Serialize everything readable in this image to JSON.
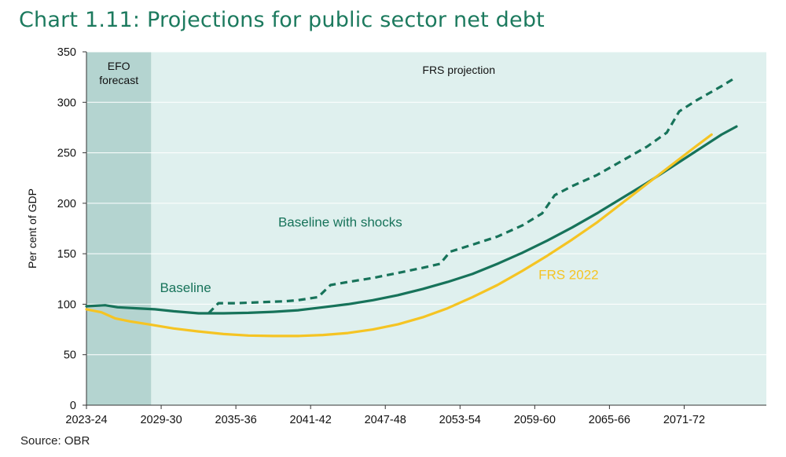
{
  "header": {
    "title": "Chart 1.11: Projections for public sector net debt"
  },
  "footer": {
    "source": "Source: OBR"
  },
  "colors": {
    "baseline": "#17735a",
    "shocks": "#17735a",
    "frs2022": "#f5c423",
    "forecast_bg": "#b4d4d0",
    "projection_bg": "#dff0ee"
  },
  "chart_data": {
    "type": "line",
    "ylabel": "Per cent of GDP",
    "ylim": [
      0,
      350
    ],
    "yticks": [
      0,
      50,
      100,
      150,
      200,
      250,
      300,
      350
    ],
    "xlim": [
      2023,
      2077.6
    ],
    "xticks": [
      {
        "label": "2023-24",
        "year": 2023
      },
      {
        "label": "2029-30",
        "year": 2029
      },
      {
        "label": "2035-36",
        "year": 2035
      },
      {
        "label": "2041-42",
        "year": 2041
      },
      {
        "label": "2047-48",
        "year": 2047
      },
      {
        "label": "2053-54",
        "year": 2053
      },
      {
        "label": "2059-60",
        "year": 2059
      },
      {
        "label": "2065-66",
        "year": 2065
      },
      {
        "label": "2071-72",
        "year": 2071
      }
    ],
    "regions": [
      {
        "name": "EFO forecast",
        "label_lines": [
          "EFO",
          "forecast"
        ],
        "from": 2023,
        "to": 2028.2
      },
      {
        "name": "FRS projection",
        "label_lines": [
          "FRS projection"
        ],
        "from": 2028.2,
        "to": 2077.6
      }
    ],
    "series": [
      {
        "key": "shocks",
        "name": "Baseline with shocks",
        "style": "dashed",
        "x": [
          2032.8,
          2033.6,
          2035,
          2037,
          2039,
          2040,
          2041.6,
          2042.6,
          2044,
          2046,
          2048,
          2050,
          2051.4,
          2052.2,
          2054,
          2056,
          2058,
          2059.6,
          2060.6,
          2062,
          2064,
          2066,
          2068,
          2069.6,
          2070.6,
          2072,
          2074,
          2075.2
        ],
        "y": [
          91,
          101,
          101,
          102,
          103,
          104,
          107,
          119,
          122,
          126,
          131,
          136,
          140,
          152,
          159,
          167,
          178,
          190,
          208,
          217,
          228,
          242,
          256,
          270,
          291,
          302,
          316,
          325
        ]
      },
      {
        "key": "baseline",
        "name": "Baseline",
        "style": "solid",
        "x": [
          2023,
          2024.5,
          2025.5,
          2027,
          2028.5,
          2030,
          2032,
          2034,
          2036,
          2038,
          2040,
          2042,
          2044,
          2046,
          2048,
          2050,
          2052,
          2054,
          2056,
          2058,
          2060,
          2062,
          2064,
          2066,
          2068,
          2070,
          2072,
          2074,
          2075.2
        ],
        "y": [
          98,
          99,
          97,
          96,
          95,
          93,
          91,
          91,
          91.5,
          92.5,
          94,
          97,
          100,
          104,
          109,
          115,
          122,
          130,
          140,
          151,
          163,
          176,
          190,
          205,
          220,
          236,
          252,
          268,
          276
        ]
      },
      {
        "key": "frs2022",
        "name": "FRS 2022",
        "style": "solid",
        "x": [
          2023,
          2024.2,
          2025.3,
          2026.5,
          2028,
          2030,
          2032,
          2034,
          2036,
          2038,
          2040,
          2042,
          2044,
          2046,
          2048,
          2050,
          2052,
          2054,
          2056,
          2058,
          2060,
          2062,
          2064,
          2066,
          2068,
          2070,
          2072,
          2073.2
        ],
        "y": [
          95,
          92,
          86,
          83,
          80,
          76,
          73,
          70.5,
          69,
          68.5,
          68.5,
          69.5,
          71.5,
          75,
          80,
          87,
          96,
          107,
          119,
          133,
          148,
          164,
          181,
          200,
          219,
          238,
          257,
          268
        ]
      }
    ],
    "labels": [
      {
        "series": "Baseline with shocks",
        "text": "Baseline with shocks",
        "x": 2038.4,
        "y": 177
      },
      {
        "series": "Baseline",
        "text": "Baseline",
        "x": 2028.9,
        "y": 112
      },
      {
        "series": "FRS 2022",
        "text": "FRS 2022",
        "x": 2059.3,
        "y": 125
      }
    ]
  }
}
